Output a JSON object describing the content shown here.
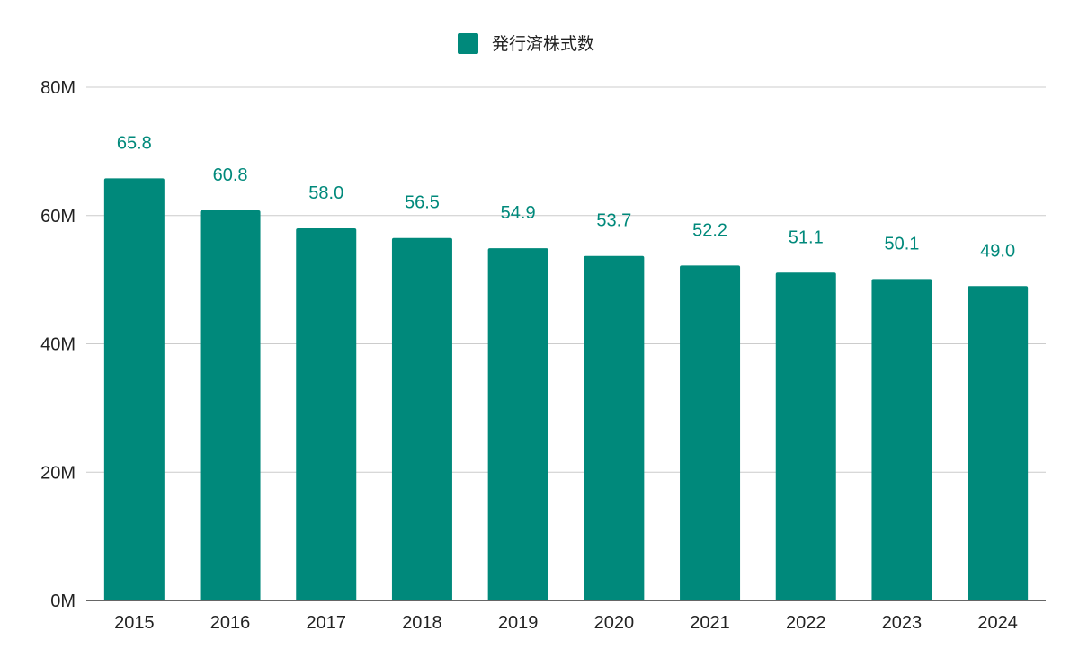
{
  "chart_data": {
    "type": "bar",
    "title": "",
    "xlabel": "",
    "ylabel": "",
    "categories": [
      "2015",
      "2016",
      "2017",
      "2018",
      "2019",
      "2020",
      "2021",
      "2022",
      "2023",
      "2024"
    ],
    "series": [
      {
        "name": "発行済株式数",
        "values": [
          65.8,
          60.8,
          58.0,
          56.5,
          54.9,
          53.7,
          52.2,
          51.1,
          50.1,
          49.0
        ],
        "data_labels": [
          "65.8",
          "60.8",
          "58.0",
          "56.5",
          "54.9",
          "53.7",
          "52.2",
          "51.1",
          "50.1",
          "49.0"
        ],
        "color": "#00897b"
      }
    ],
    "ylim": [
      0,
      80
    ],
    "yticks": [
      0,
      20,
      40,
      60,
      80
    ],
    "ytick_labels": [
      "0M",
      "20M",
      "40M",
      "60M",
      "80M"
    ],
    "grid": true,
    "legend": "top-center"
  }
}
